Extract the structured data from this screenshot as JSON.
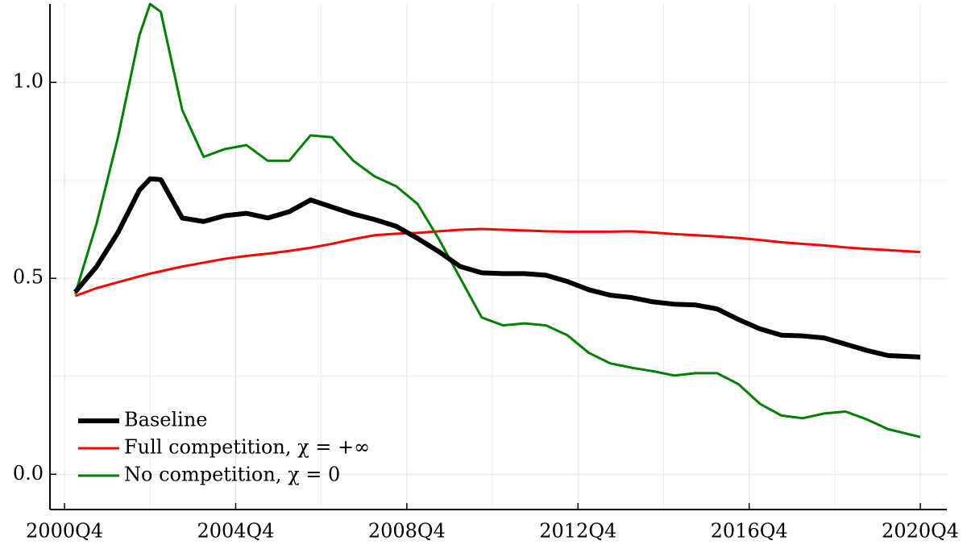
{
  "chart_data": {
    "type": "line",
    "x": [
      2001.0,
      2001.5,
      2002.0,
      2002.5,
      2002.75,
      2003.0,
      2003.5,
      2004.0,
      2004.5,
      2005.0,
      2005.5,
      2006.0,
      2006.5,
      2007.0,
      2007.5,
      2008.0,
      2008.5,
      2009.0,
      2009.5,
      2010.0,
      2010.5,
      2011.0,
      2011.5,
      2012.0,
      2012.5,
      2013.0,
      2013.5,
      2014.0,
      2014.5,
      2015.0,
      2015.5,
      2016.0,
      2016.5,
      2017.0,
      2017.5,
      2018.0,
      2018.5,
      2019.0,
      2019.5,
      2020.0,
      2020.75
    ],
    "series": [
      {
        "name": "Baseline",
        "color": "#000000",
        "width": 6,
        "values": [
          0.465,
          0.53,
          0.617,
          0.725,
          0.754,
          0.752,
          0.654,
          0.645,
          0.66,
          0.666,
          0.654,
          0.67,
          0.7,
          0.682,
          0.664,
          0.65,
          0.633,
          0.602,
          0.568,
          0.53,
          0.514,
          0.512,
          0.512,
          0.508,
          0.492,
          0.471,
          0.457,
          0.451,
          0.44,
          0.434,
          0.432,
          0.422,
          0.395,
          0.371,
          0.355,
          0.353,
          0.348,
          0.332,
          0.316,
          0.303,
          0.299
        ]
      },
      {
        "name": "Full competition, χ = +∞",
        "color": "#ff0000",
        "width": 3,
        "values": [
          0.455,
          0.475,
          0.49,
          0.505,
          0.512,
          0.518,
          0.53,
          0.54,
          0.55,
          0.557,
          0.563,
          0.57,
          0.578,
          0.588,
          0.6,
          0.61,
          0.614,
          0.616,
          0.62,
          0.624,
          0.626,
          0.624,
          0.622,
          0.62,
          0.619,
          0.619,
          0.619,
          0.62,
          0.617,
          0.613,
          0.61,
          0.607,
          0.603,
          0.598,
          0.592,
          0.588,
          0.584,
          0.579,
          0.575,
          0.572,
          0.567
        ]
      },
      {
        "name": "No competition, χ = 0",
        "color": "#008000",
        "width": 3,
        "values": [
          0.46,
          0.64,
          0.86,
          1.12,
          1.2,
          1.18,
          0.93,
          0.81,
          0.83,
          0.84,
          0.8,
          0.8,
          0.865,
          0.86,
          0.8,
          0.76,
          0.735,
          0.69,
          0.6,
          0.5,
          0.4,
          0.38,
          0.385,
          0.38,
          0.355,
          0.31,
          0.283,
          0.272,
          0.263,
          0.252,
          0.258,
          0.258,
          0.23,
          0.18,
          0.15,
          0.143,
          0.155,
          0.16,
          0.14,
          0.115,
          0.095
        ]
      }
    ],
    "xlim": [
      2000.41,
      2021.37
    ],
    "ylim": [
      -0.09,
      1.2
    ],
    "xticks": [
      {
        "value": 2000.75,
        "label": "2000Q4"
      },
      {
        "value": 2004.75,
        "label": "2004Q4"
      },
      {
        "value": 2008.75,
        "label": "2008Q4"
      },
      {
        "value": 2012.75,
        "label": "2012Q4"
      },
      {
        "value": 2016.75,
        "label": "2016Q4"
      },
      {
        "value": 2020.75,
        "label": "2020Q4"
      }
    ],
    "yticks": [
      {
        "value": 0,
        "label": "0.0"
      },
      0.5,
      {
        "value": 1,
        "label": "1.0"
      }
    ],
    "minor_xticks": [
      2002.75,
      2006.75,
      2010.75,
      2014.75,
      2018.75
    ],
    "minor_yticks": [
      0.25,
      0.75
    ],
    "grid": true,
    "legend": "lower left"
  }
}
